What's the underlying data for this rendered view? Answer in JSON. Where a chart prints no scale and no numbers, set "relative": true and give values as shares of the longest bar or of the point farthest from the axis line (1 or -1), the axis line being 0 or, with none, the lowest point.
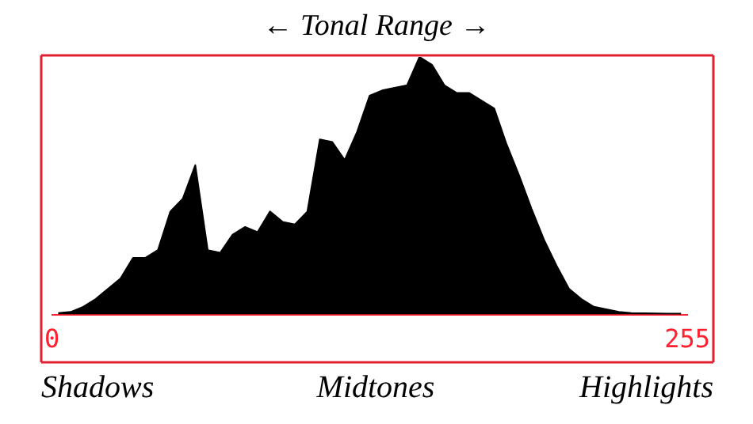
{
  "chart_data": {
    "type": "area",
    "title": "← Tonal Range →",
    "relative": true,
    "color": "#000000",
    "x": [
      2.5,
      7.5,
      12.5,
      17.5,
      22.5,
      27.5,
      32.5,
      37.5,
      42.5,
      47.5,
      52.5,
      57.5,
      62.5,
      67.5,
      72.5,
      77.5,
      82.5,
      87.5,
      92.5,
      97.5,
      102.5,
      107.5,
      112.5,
      117.5,
      122.5,
      127.5,
      132.5,
      137.5,
      142.5,
      147.5,
      152.5,
      157.5,
      162.5,
      167.5,
      172.5,
      177.5,
      182.5,
      187.5,
      192.5,
      197.5,
      202.5,
      207.5,
      212.5,
      217.5,
      222.5,
      227.5,
      232.5,
      237.5,
      242.5,
      247.5,
      252.5
    ],
    "values": [
      0.006,
      0.01,
      0.03,
      0.06,
      0.1,
      0.14,
      0.22,
      0.22,
      0.25,
      0.4,
      0.45,
      0.58,
      0.25,
      0.24,
      0.31,
      0.34,
      0.32,
      0.4,
      0.36,
      0.35,
      0.4,
      0.68,
      0.67,
      0.6,
      0.71,
      0.85,
      0.87,
      0.88,
      0.89,
      1,
      0.97,
      0.89,
      0.86,
      0.86,
      0.83,
      0.8,
      0.66,
      0.54,
      0.41,
      0.29,
      0.19,
      0.1,
      0.06,
      0.03,
      0.02,
      0.01,
      0.006,
      0.005,
      0.004,
      0.003,
      0.003
    ],
    "xlim": [
      0,
      255
    ],
    "xticks": [
      0,
      255
    ],
    "grid": false,
    "legend": false,
    "annotations": [
      "Shadows",
      "Midtones",
      "Highlights"
    ]
  }
}
